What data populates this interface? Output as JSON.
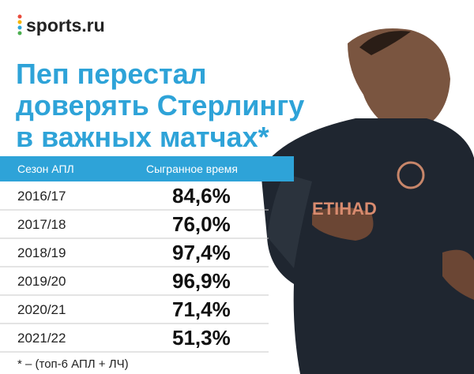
{
  "logo": "sports.ru",
  "title": {
    "lines": [
      "Пеп перестал",
      "доверять Стерлингу",
      "в важных матчах*"
    ]
  },
  "table": {
    "header": [
      "Сезон АПЛ",
      "Сыгранное время"
    ],
    "rows": [
      [
        "2016/17",
        "84,6%"
      ],
      [
        "2017/18",
        "76,0%"
      ],
      [
        "2018/19",
        "97,4%"
      ],
      [
        "2019/20",
        "96,9%"
      ],
      [
        "2020/21",
        "71,4%"
      ],
      [
        "2021/22",
        "51,3%"
      ]
    ]
  },
  "footnote": "* – (топ-6 АПЛ + ЛЧ)"
}
